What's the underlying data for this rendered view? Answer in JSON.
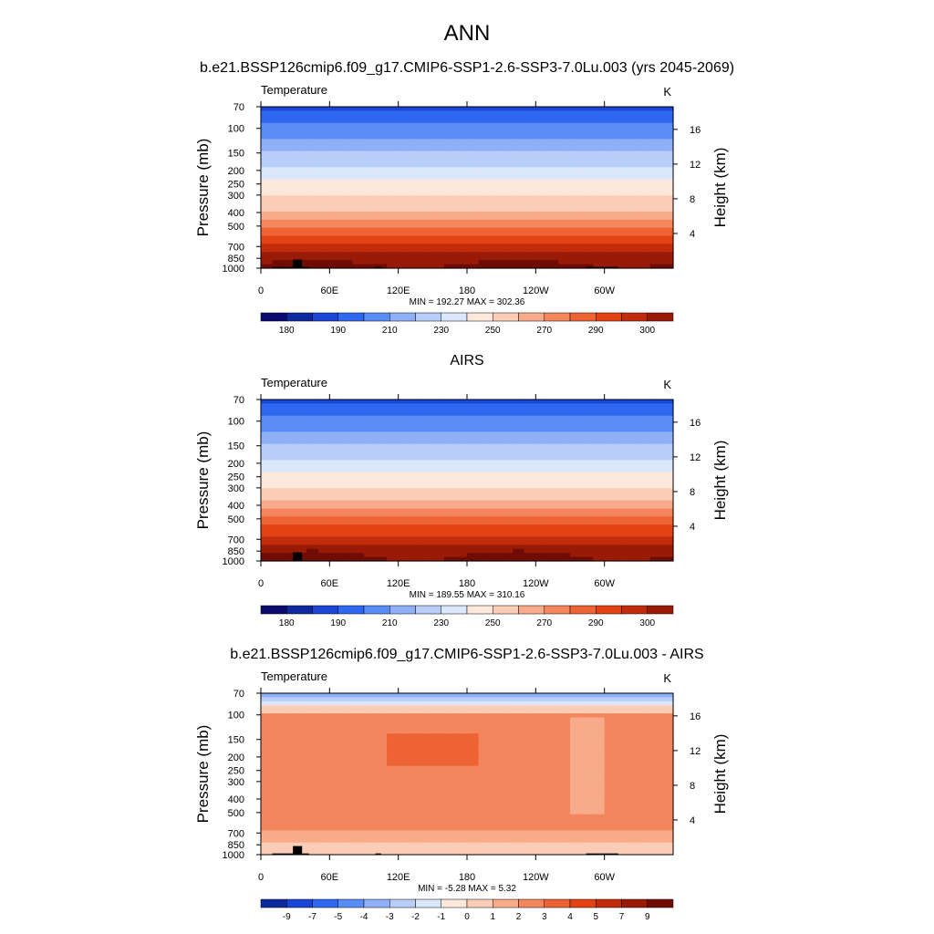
{
  "figure": {
    "title": "ANN"
  },
  "colors": {
    "abs_levels": [
      "#0a0a6e",
      "#0d2a9e",
      "#1b45d6",
      "#2f68f0",
      "#5a8cf5",
      "#8fb0f7",
      "#b9cdf9",
      "#dbe7fb",
      "#fde8dc",
      "#fbcdb6",
      "#f8ab8a",
      "#f4865e",
      "#ee6334",
      "#e34314",
      "#c12d0c",
      "#9a1a08",
      "#6f0d04"
    ],
    "diff_levels": [
      "#0a0a6e",
      "#0d2a9e",
      "#1b45d6",
      "#2f68f0",
      "#5a8cf5",
      "#8fb0f7",
      "#b9cdf9",
      "#dbe7fb",
      "#fde8dc",
      "#fbcdb6",
      "#f8ab8a",
      "#f4865e",
      "#ee6334",
      "#e34314",
      "#c12d0c",
      "#9a1a08",
      "#6f0d04"
    ],
    "land_mask": "#000000"
  },
  "chart_data": [
    {
      "type": "heatmap",
      "title": "b.e21.BSSP126cmip6.f09_g17.CMIP6-SSP1-2.6-SSP3-7.0Lu.003 (yrs 2045-2069)",
      "variable": "Temperature",
      "units": "K",
      "xlabel": "",
      "ylabel": "Pressure (mb)",
      "ylabel_right": "Height (km)",
      "x_ticks": [
        "0",
        "60E",
        "120E",
        "180",
        "120W",
        "60W"
      ],
      "y_ticks": [
        "70",
        "100",
        "150",
        "200",
        "250",
        "300",
        "400",
        "500",
        "700",
        "850",
        "1000"
      ],
      "y_right_ticks": [
        "16",
        "12",
        "8",
        "4"
      ],
      "stats": "MIN = 192.27  MAX = 302.36",
      "min": 192.27,
      "max": 302.36,
      "colorbar_labels": [
        "180",
        "190",
        "210",
        "230",
        "250",
        "270",
        "290",
        "300"
      ]
    },
    {
      "type": "heatmap",
      "title": "AIRS",
      "variable": "Temperature",
      "units": "K",
      "xlabel": "",
      "ylabel": "Pressure (mb)",
      "ylabel_right": "Height (km)",
      "x_ticks": [
        "0",
        "60E",
        "120E",
        "180",
        "120W",
        "60W"
      ],
      "y_ticks": [
        "70",
        "100",
        "150",
        "200",
        "250",
        "300",
        "400",
        "500",
        "700",
        "850",
        "1000"
      ],
      "y_right_ticks": [
        "16",
        "12",
        "8",
        "4"
      ],
      "stats": "MIN = 189.55  MAX = 310.16",
      "min": 189.55,
      "max": 310.16,
      "colorbar_labels": [
        "180",
        "190",
        "210",
        "230",
        "250",
        "270",
        "290",
        "300"
      ]
    },
    {
      "type": "heatmap",
      "title": "b.e21.BSSP126cmip6.f09_g17.CMIP6-SSP1-2.6-SSP3-7.0Lu.003 - AIRS",
      "variable": "Temperature",
      "units": "K",
      "xlabel": "",
      "ylabel": "Pressure (mb)",
      "ylabel_right": "Height (km)",
      "x_ticks": [
        "0",
        "60E",
        "120E",
        "180",
        "120W",
        "60W"
      ],
      "y_ticks": [
        "70",
        "100",
        "150",
        "200",
        "250",
        "300",
        "400",
        "500",
        "700",
        "850",
        "1000"
      ],
      "y_right_ticks": [
        "16",
        "12",
        "8",
        "4"
      ],
      "stats": "MIN =  -5.28  MAX =   5.32",
      "min": -5.28,
      "max": 5.32,
      "colorbar_labels": [
        "-9",
        "-7",
        "-5",
        "-4",
        "-3",
        "-2",
        "-1",
        "0",
        "1",
        "2",
        "3",
        "4",
        "5",
        "7",
        "9"
      ]
    }
  ]
}
